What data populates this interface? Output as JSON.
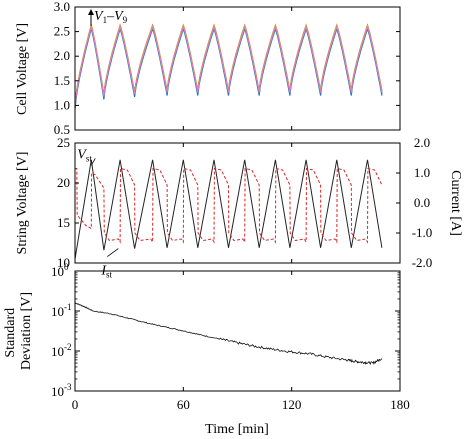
{
  "chart_data": [
    {
      "type": "line",
      "panel": "cell-voltage",
      "ylabel": "Cell Voltage [V]",
      "xlim": [
        0,
        180
      ],
      "ylim": [
        0.5,
        3.0
      ],
      "yticks": [
        "0.5",
        "1.0",
        "1.5",
        "2.0",
        "2.5",
        "3.0"
      ],
      "annotation": {
        "text": "V",
        "sub1": "1",
        "dash": "–",
        "sub2": "9"
      },
      "series": [
        {
          "color": "#d62728",
          "peak_offset": 0.03,
          "valley_offset": 0.02
        },
        {
          "color": "#ff7f0e",
          "peak_offset": 0.01,
          "valley_offset": -0.01
        },
        {
          "color": "#8c564b",
          "peak_offset": 0.0,
          "valley_offset": 0.0
        },
        {
          "color": "#2ca02c",
          "peak_offset": -0.02,
          "valley_offset": -0.03
        },
        {
          "color": "#17becf",
          "peak_offset": -0.05,
          "valley_offset": -0.06
        },
        {
          "color": "#9467bd",
          "peak_offset": -0.03,
          "valley_offset": -0.04
        },
        {
          "color": "#1f77b4",
          "peak_offset": -0.04,
          "valley_offset": -0.08
        },
        {
          "color": "#bcbd22",
          "peak_offset": 0.02,
          "valley_offset": 0.01
        },
        {
          "color": "#e377c2",
          "peak_offset": -0.01,
          "valley_offset": -0.02
        }
      ],
      "cycles": [
        {
          "t0": 0,
          "t_peak": 9,
          "t_end": 16,
          "v_start": 1.0,
          "v_peak": 2.6,
          "v_end": 1.2
        },
        {
          "t0": 16,
          "t_peak": 25,
          "t_end": 33,
          "v_start": 1.2,
          "v_peak": 2.6,
          "v_end": 1.25
        },
        {
          "t0": 33,
          "t_peak": 43,
          "t_end": 51,
          "v_start": 1.25,
          "v_peak": 2.6,
          "v_end": 1.28
        },
        {
          "t0": 51,
          "t_peak": 60,
          "t_end": 68,
          "v_start": 1.28,
          "v_peak": 2.6,
          "v_end": 1.28
        },
        {
          "t0": 68,
          "t_peak": 77,
          "t_end": 85,
          "v_start": 1.28,
          "v_peak": 2.6,
          "v_end": 1.28
        },
        {
          "t0": 85,
          "t_peak": 94,
          "t_end": 102,
          "v_start": 1.28,
          "v_peak": 2.6,
          "v_end": 1.28
        },
        {
          "t0": 102,
          "t_peak": 111,
          "t_end": 119,
          "v_start": 1.28,
          "v_peak": 2.6,
          "v_end": 1.28
        },
        {
          "t0": 119,
          "t_peak": 128,
          "t_end": 136,
          "v_start": 1.28,
          "v_peak": 2.6,
          "v_end": 1.28
        },
        {
          "t0": 136,
          "t_peak": 145,
          "t_end": 153,
          "v_start": 1.28,
          "v_peak": 2.6,
          "v_end": 1.28
        },
        {
          "t0": 153,
          "t_peak": 162,
          "t_end": 170,
          "v_start": 1.28,
          "v_peak": 2.6,
          "v_end": 1.28
        }
      ]
    },
    {
      "type": "line",
      "panel": "string-voltage-current",
      "ylabel": "String Voltage [V]",
      "y2label": "Current [A]",
      "xlim": [
        0,
        180
      ],
      "ylim": [
        10,
        25
      ],
      "yticks": [
        "10",
        "15",
        "20",
        "25"
      ],
      "y2lim": [
        -2.0,
        2.0
      ],
      "y2ticks": [
        "-2.0",
        "-1.0",
        "0.0",
        "1.0",
        "2.0"
      ],
      "annotations": [
        {
          "text": "V",
          "sub": "st",
          "at_time": 9,
          "at_value": 22.7
        },
        {
          "text": "I",
          "sub": "st",
          "at_time": 24,
          "at_value": 11.8
        }
      ],
      "series": [
        {
          "role": "voltage",
          "color": "#222222",
          "style": "solid",
          "x": [
            0,
            9,
            16,
            25,
            33,
            43,
            51,
            60,
            68,
            77,
            85,
            94,
            102,
            111,
            119,
            128,
            136,
            145,
            153,
            162,
            170
          ],
          "y": [
            10.5,
            22.9,
            11.6,
            22.9,
            11.8,
            22.9,
            11.9,
            22.9,
            11.9,
            22.9,
            11.9,
            22.9,
            11.9,
            22.9,
            11.9,
            22.9,
            11.9,
            22.9,
            11.9,
            22.9,
            11.9
          ]
        },
        {
          "role": "current",
          "color": "#d62728",
          "style": "dashed",
          "x": [
            0,
            1,
            1.2,
            6,
            9,
            9.2,
            11,
            16,
            16.2,
            19,
            24,
            25,
            25.2,
            29,
            33,
            33.2,
            36,
            42,
            43,
            43.2,
            47,
            51,
            51.2,
            54,
            59,
            60,
            60.2,
            64,
            68,
            68.2,
            71,
            76,
            77,
            77.2,
            81,
            85,
            85.2,
            88,
            93,
            94,
            94.2,
            98,
            102,
            102.2,
            105,
            110,
            111,
            111.2,
            115,
            119,
            119.2,
            122,
            127,
            128,
            128.2,
            132,
            136,
            136.2,
            139,
            144,
            145,
            145.2,
            149,
            153,
            153.2,
            156,
            161,
            162,
            162.2,
            166,
            170
          ],
          "y": [
            1.15,
            1.15,
            -0.4,
            -0.75,
            -0.85,
            1.0,
            0.95,
            0.5,
            -1.0,
            -1.25,
            -1.2,
            -1.3,
            1.15,
            1.1,
            0.6,
            -1.0,
            -1.25,
            -1.2,
            -1.3,
            1.15,
            1.1,
            0.6,
            -1.0,
            -1.25,
            -1.2,
            -1.3,
            1.15,
            1.1,
            0.6,
            -1.0,
            -1.25,
            -1.2,
            -1.3,
            1.15,
            1.1,
            0.6,
            -1.0,
            -1.25,
            -1.2,
            -1.3,
            1.15,
            1.1,
            0.6,
            -1.0,
            -1.25,
            -1.2,
            -1.3,
            1.15,
            1.1,
            0.6,
            -1.0,
            -1.25,
            -1.2,
            -1.3,
            1.15,
            1.1,
            0.6,
            -1.0,
            -1.25,
            -1.2,
            -1.3,
            1.15,
            1.1,
            0.6,
            -1.0,
            -1.25,
            -1.2,
            -1.3,
            1.15,
            1.1,
            0.6
          ]
        }
      ]
    },
    {
      "type": "line",
      "panel": "standard-deviation",
      "ylabel_line1": "Standard",
      "ylabel_line2": "Deviation [V]",
      "xlabel": "Time [min]",
      "xlim": [
        0,
        180
      ],
      "xticks": [
        "0",
        "60",
        "120",
        "180"
      ],
      "yscale": "log",
      "ylim": [
        0.001,
        1
      ],
      "yticks": [
        {
          "base": "10",
          "exp": "0"
        },
        {
          "base": "10",
          "exp": "-1"
        },
        {
          "base": "10",
          "exp": "-2"
        },
        {
          "base": "10",
          "exp": "-3"
        }
      ],
      "series": [
        {
          "color": "#111111",
          "style": "solid",
          "x": [
            0,
            5,
            10,
            20,
            30,
            40,
            50,
            60,
            70,
            80,
            90,
            100,
            110,
            120,
            130,
            140,
            150,
            155,
            160,
            165,
            170
          ],
          "y": [
            0.16,
            0.13,
            0.1,
            0.085,
            0.065,
            0.05,
            0.04,
            0.032,
            0.025,
            0.02,
            0.016,
            0.013,
            0.011,
            0.0095,
            0.0085,
            0.007,
            0.006,
            0.0055,
            0.0052,
            0.005,
            0.0065
          ]
        }
      ]
    }
  ]
}
